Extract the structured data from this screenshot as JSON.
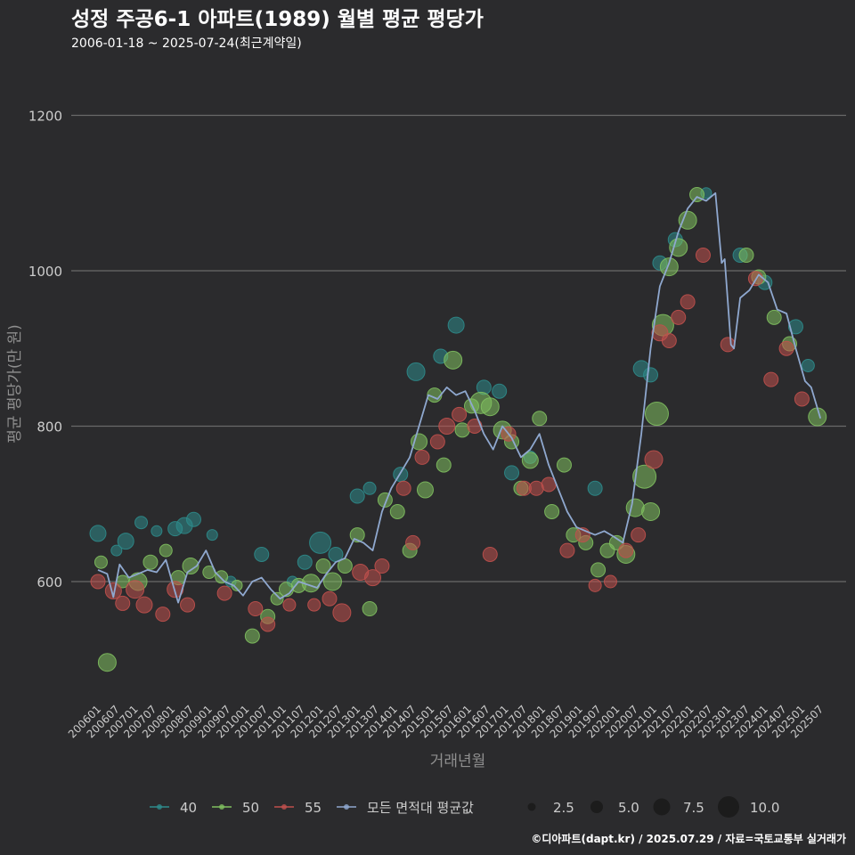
{
  "title": "성정 주공6-1 아파트(1989) 월별 평균 평당가",
  "subtitle": "2006-01-18 ~ 2025-07-24(최근계약일)",
  "footer": "©디아파트(dapt.kr) / 2025.07.29 / 자료=국토교통부 실거래가",
  "colors": {
    "background": "#2b2b2d",
    "grid": "#6a6a6a",
    "axis_text": "#cccccc",
    "axis_title": "#8f8f8f",
    "s40": "#2e8b8b",
    "s50": "#7fbf5f",
    "s55": "#c0504d",
    "avg": "#8fa8cf"
  },
  "chart_data": {
    "type": "scatter",
    "title": "성정 주공6-1 아파트(1989) 월별 평균 평당가",
    "xlabel": "거래년월",
    "ylabel": "평균 평당가(만 원)",
    "ylim": [
      440,
      1260
    ],
    "yticks": [
      600,
      800,
      1000,
      1200
    ],
    "xlim": [
      "2005-12",
      "2025-10"
    ],
    "xticks": [
      "200601",
      "200607",
      "200701",
      "200707",
      "200801",
      "200807",
      "200901",
      "200907",
      "201001",
      "201007",
      "201101",
      "201107",
      "201201",
      "201207",
      "201301",
      "201307",
      "201401",
      "201407",
      "201501",
      "201507",
      "201601",
      "201607",
      "201701",
      "201707",
      "201801",
      "201807",
      "201901",
      "201907",
      "202001",
      "202007",
      "202101",
      "202107",
      "202201",
      "202207",
      "202301",
      "202307",
      "202401",
      "202407",
      "202501",
      "202507"
    ],
    "grid": "horizontal",
    "legend": {
      "position": "bottom",
      "area_series": [
        {
          "name": "40",
          "color": "#2e8b8b"
        },
        {
          "name": "50",
          "color": "#7fbf5f"
        },
        {
          "name": "55",
          "color": "#c0504d"
        }
      ],
      "avg_series": {
        "name": "모든 면적대 평균값",
        "color": "#8fa8cf"
      },
      "size_title": "",
      "sizes": [
        {
          "value": 2.5,
          "label": "2.5"
        },
        {
          "value": 5.0,
          "label": "5.0"
        },
        {
          "value": 7.5,
          "label": "7.5"
        },
        {
          "value": 10.0,
          "label": "10.0"
        }
      ]
    },
    "average_line": {
      "name": "모든 면적대 평균값",
      "points": [
        [
          "2006-01",
          615
        ],
        [
          "2006-04",
          610
        ],
        [
          "2006-06",
          580
        ],
        [
          "2006-08",
          622
        ],
        [
          "2006-11",
          605
        ],
        [
          "2007-02",
          610
        ],
        [
          "2007-05",
          615
        ],
        [
          "2007-08",
          612
        ],
        [
          "2007-11",
          628
        ],
        [
          "2008-01",
          600
        ],
        [
          "2008-03",
          573
        ],
        [
          "2008-06",
          612
        ],
        [
          "2008-09",
          620
        ],
        [
          "2008-12",
          640
        ],
        [
          "2009-03",
          612
        ],
        [
          "2009-06",
          600
        ],
        [
          "2009-09",
          595
        ],
        [
          "2009-12",
          582
        ],
        [
          "2010-03",
          600
        ],
        [
          "2010-06",
          605
        ],
        [
          "2010-09",
          590
        ],
        [
          "2010-12",
          578
        ],
        [
          "2011-03",
          585
        ],
        [
          "2011-06",
          600
        ],
        [
          "2011-09",
          596
        ],
        [
          "2011-12",
          592
        ],
        [
          "2012-03",
          610
        ],
        [
          "2012-06",
          625
        ],
        [
          "2012-09",
          630
        ],
        [
          "2012-12",
          655
        ],
        [
          "2013-03",
          650
        ],
        [
          "2013-06",
          640
        ],
        [
          "2013-09",
          690
        ],
        [
          "2013-12",
          720
        ],
        [
          "2014-03",
          740
        ],
        [
          "2014-06",
          760
        ],
        [
          "2014-09",
          800
        ],
        [
          "2014-12",
          840
        ],
        [
          "2015-03",
          835
        ],
        [
          "2015-06",
          850
        ],
        [
          "2015-09",
          840
        ],
        [
          "2015-12",
          845
        ],
        [
          "2016-03",
          820
        ],
        [
          "2016-06",
          790
        ],
        [
          "2016-09",
          770
        ],
        [
          "2016-12",
          800
        ],
        [
          "2017-03",
          785
        ],
        [
          "2017-06",
          760
        ],
        [
          "2017-09",
          770
        ],
        [
          "2017-12",
          790
        ],
        [
          "2018-03",
          750
        ],
        [
          "2018-06",
          720
        ],
        [
          "2018-09",
          690
        ],
        [
          "2018-12",
          670
        ],
        [
          "2019-03",
          665
        ],
        [
          "2019-06",
          660
        ],
        [
          "2019-09",
          665
        ],
        [
          "2019-12",
          658
        ],
        [
          "2020-03",
          650
        ],
        [
          "2020-06",
          700
        ],
        [
          "2020-09",
          790
        ],
        [
          "2020-12",
          900
        ],
        [
          "2021-03",
          980
        ],
        [
          "2021-06",
          1010
        ],
        [
          "2021-09",
          1050
        ],
        [
          "2021-12",
          1080
        ],
        [
          "2022-03",
          1095
        ],
        [
          "2022-06",
          1090
        ],
        [
          "2022-09",
          1100
        ],
        [
          "2022-11",
          1010
        ],
        [
          "2022-12",
          1015
        ],
        [
          "2023-02",
          905
        ],
        [
          "2023-03",
          900
        ],
        [
          "2023-05",
          965
        ],
        [
          "2023-08",
          975
        ],
        [
          "2023-11",
          995
        ],
        [
          "2024-02",
          985
        ],
        [
          "2024-05",
          950
        ],
        [
          "2024-08",
          945
        ],
        [
          "2024-11",
          900
        ],
        [
          "2025-02",
          858
        ],
        [
          "2025-04",
          850
        ],
        [
          "2025-07",
          810
        ]
      ]
    },
    "series": [
      {
        "name": "40",
        "color": "#2e8b8b",
        "points": [
          [
            "2006-01",
            662,
            3.5
          ],
          [
            "2006-07",
            640,
            2
          ],
          [
            "2006-10",
            652,
            3.5
          ],
          [
            "2007-03",
            676,
            2.5
          ],
          [
            "2007-08",
            665,
            2
          ],
          [
            "2008-02",
            668,
            3
          ],
          [
            "2008-05",
            672,
            3.5
          ],
          [
            "2008-08",
            680,
            3
          ],
          [
            "2009-02",
            660,
            2
          ],
          [
            "2009-08",
            600,
            2
          ],
          [
            "2010-06",
            635,
            3
          ],
          [
            "2011-04",
            600,
            2
          ],
          [
            "2011-08",
            625,
            3
          ],
          [
            "2012-01",
            650,
            5
          ],
          [
            "2012-06",
            635,
            3
          ],
          [
            "2013-01",
            710,
            3
          ],
          [
            "2013-05",
            720,
            2.5
          ],
          [
            "2014-03",
            738,
            3
          ],
          [
            "2014-08",
            870,
            4
          ],
          [
            "2015-04",
            890,
            3
          ],
          [
            "2015-09",
            930,
            3.5
          ],
          [
            "2016-06",
            850,
            3
          ],
          [
            "2016-11",
            845,
            3
          ],
          [
            "2017-03",
            740,
            3
          ],
          [
            "2017-09",
            760,
            2.5
          ],
          [
            "2019-06",
            720,
            3
          ],
          [
            "2020-09",
            874,
            3.5
          ],
          [
            "2020-12",
            866,
            3
          ],
          [
            "2021-03",
            1010,
            3
          ],
          [
            "2021-08",
            1040,
            3
          ],
          [
            "2022-06",
            1100,
            2
          ],
          [
            "2023-05",
            1020,
            3
          ],
          [
            "2024-01",
            985,
            3
          ],
          [
            "2024-11",
            928,
            3
          ],
          [
            "2025-03",
            878,
            2.5
          ]
        ]
      },
      {
        "name": "50",
        "color": "#7fbf5f",
        "points": [
          [
            "2006-02",
            625,
            2.5
          ],
          [
            "2006-04",
            496,
            4
          ],
          [
            "2006-09",
            600,
            2.5
          ],
          [
            "2007-02",
            600,
            4
          ],
          [
            "2007-06",
            625,
            3
          ],
          [
            "2007-11",
            640,
            2.5
          ],
          [
            "2008-03",
            605,
            3
          ],
          [
            "2008-07",
            620,
            3.5
          ],
          [
            "2009-01",
            612,
            2.5
          ],
          [
            "2009-05",
            606,
            2.5
          ],
          [
            "2009-10",
            595,
            2
          ],
          [
            "2010-03",
            530,
            3
          ],
          [
            "2010-08",
            555,
            3
          ],
          [
            "2010-11",
            578,
            2.5
          ],
          [
            "2011-02",
            590,
            3
          ],
          [
            "2011-06",
            595,
            3
          ],
          [
            "2011-10",
            598,
            4
          ],
          [
            "2012-02",
            620,
            3
          ],
          [
            "2012-05",
            600,
            4
          ],
          [
            "2012-09",
            620,
            3
          ],
          [
            "2013-01",
            660,
            3
          ],
          [
            "2013-05",
            565,
            3
          ],
          [
            "2013-10",
            705,
            3
          ],
          [
            "2014-02",
            690,
            3
          ],
          [
            "2014-06",
            640,
            3
          ],
          [
            "2014-09",
            780,
            3.5
          ],
          [
            "2014-11",
            718,
            3.5
          ],
          [
            "2015-02",
            840,
            3
          ],
          [
            "2015-05",
            750,
            3
          ],
          [
            "2015-08",
            885,
            4
          ],
          [
            "2015-11",
            795,
            3
          ],
          [
            "2016-02",
            826,
            3
          ],
          [
            "2016-05",
            830,
            5
          ],
          [
            "2016-08",
            825,
            4
          ],
          [
            "2016-12",
            795,
            4
          ],
          [
            "2017-03",
            780,
            3
          ],
          [
            "2017-06",
            720,
            3
          ],
          [
            "2017-09",
            756,
            3.5
          ],
          [
            "2017-12",
            810,
            3
          ],
          [
            "2018-04",
            690,
            3
          ],
          [
            "2018-08",
            750,
            3
          ],
          [
            "2018-11",
            660,
            3
          ],
          [
            "2019-03",
            650,
            3
          ],
          [
            "2019-07",
            615,
            3
          ],
          [
            "2019-10",
            640,
            3
          ],
          [
            "2020-01",
            650,
            3
          ],
          [
            "2020-04",
            635,
            4
          ],
          [
            "2020-07",
            695,
            4
          ],
          [
            "2020-10",
            735,
            5.5
          ],
          [
            "2020-12",
            690,
            4
          ],
          [
            "2021-02",
            816,
            5.5
          ],
          [
            "2021-04",
            930,
            5
          ],
          [
            "2021-06",
            1005,
            4
          ],
          [
            "2021-09",
            1030,
            4
          ],
          [
            "2021-12",
            1065,
            4
          ],
          [
            "2022-03",
            1098,
            3
          ],
          [
            "2023-07",
            1020,
            3
          ],
          [
            "2023-11",
            992,
            3
          ],
          [
            "2024-04",
            940,
            3
          ],
          [
            "2024-09",
            906,
            3
          ],
          [
            "2025-06",
            812,
            4
          ]
        ]
      },
      {
        "name": "55",
        "color": "#c0504d",
        "points": [
          [
            "2006-01",
            600,
            3
          ],
          [
            "2006-06",
            588,
            3.5
          ],
          [
            "2006-09",
            572,
            3
          ],
          [
            "2007-01",
            590,
            4
          ],
          [
            "2007-04",
            570,
            3.5
          ],
          [
            "2007-10",
            558,
            3
          ],
          [
            "2008-02",
            590,
            3.5
          ],
          [
            "2008-06",
            570,
            3
          ],
          [
            "2009-06",
            585,
            3
          ],
          [
            "2010-04",
            565,
            3
          ],
          [
            "2010-08",
            545,
            3
          ],
          [
            "2011-03",
            570,
            2.5
          ],
          [
            "2011-11",
            570,
            2.5
          ],
          [
            "2012-04",
            578,
            3
          ],
          [
            "2012-08",
            560,
            4
          ],
          [
            "2013-02",
            612,
            3.5
          ],
          [
            "2013-06",
            605,
            3.5
          ],
          [
            "2013-09",
            620,
            3
          ],
          [
            "2014-04",
            720,
            3
          ],
          [
            "2014-07",
            650,
            3
          ],
          [
            "2014-10",
            760,
            3
          ],
          [
            "2015-03",
            780,
            3
          ],
          [
            "2015-06",
            800,
            3.5
          ],
          [
            "2015-10",
            815,
            3
          ],
          [
            "2016-03",
            800,
            3
          ],
          [
            "2016-08",
            635,
            3
          ],
          [
            "2017-02",
            790,
            3
          ],
          [
            "2017-07",
            720,
            3
          ],
          [
            "2017-11",
            720,
            3
          ],
          [
            "2018-03",
            725,
            3
          ],
          [
            "2018-09",
            640,
            3
          ],
          [
            "2019-02",
            660,
            3
          ],
          [
            "2019-06",
            595,
            2.5
          ],
          [
            "2019-11",
            600,
            2.5
          ],
          [
            "2020-04",
            640,
            3
          ],
          [
            "2020-08",
            660,
            3
          ],
          [
            "2021-01",
            757,
            4
          ],
          [
            "2021-03",
            920,
            3.5
          ],
          [
            "2021-06",
            910,
            3
          ],
          [
            "2021-09",
            940,
            3
          ],
          [
            "2021-12",
            960,
            3
          ],
          [
            "2022-05",
            1020,
            3
          ],
          [
            "2023-01",
            905,
            3
          ],
          [
            "2023-10",
            990,
            3
          ],
          [
            "2024-03",
            860,
            3
          ],
          [
            "2024-08",
            900,
            3
          ],
          [
            "2025-01",
            835,
            3
          ]
        ]
      }
    ]
  }
}
